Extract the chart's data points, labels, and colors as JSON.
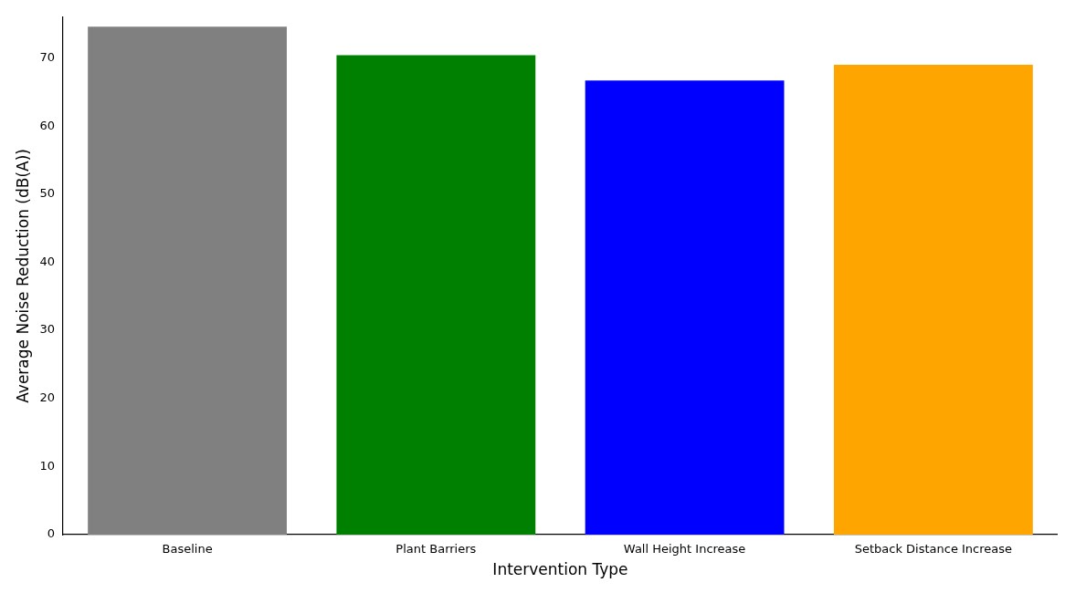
{
  "chart_data": {
    "type": "bar",
    "xlabel": "Intervention Type",
    "ylabel": "Average Noise Reduction (dB(A))",
    "categories": [
      "Baseline",
      "Plant Barriers",
      "Wall Height Increase",
      "Setback Distance Increase"
    ],
    "values": [
      74.6,
      70.4,
      66.7,
      69.0
    ],
    "colors": [
      "#808080",
      "#008000",
      "#0000ff",
      "#ffa500"
    ],
    "ylim": [
      0,
      76
    ],
    "yticks": [
      0,
      10,
      20,
      30,
      40,
      50,
      60,
      70
    ],
    "grid": false,
    "legend": false
  }
}
